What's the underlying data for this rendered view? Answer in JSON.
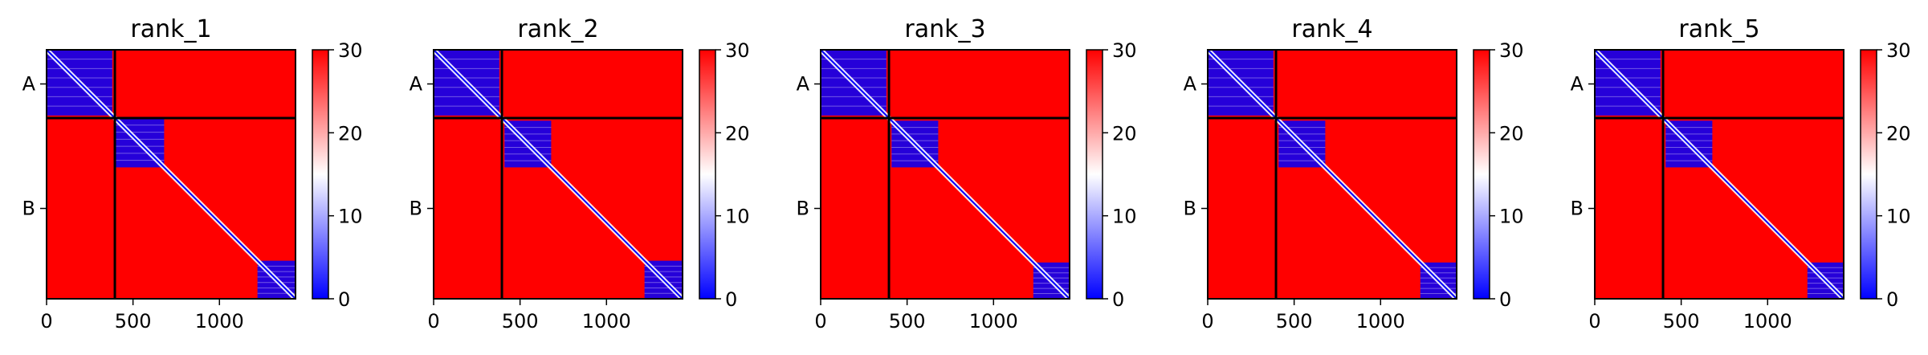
{
  "figure": {
    "colors": {
      "background": "#ffffff",
      "low": "#0000ff",
      "mid": "#ffffff",
      "high": "#ff0000",
      "separator": "#000000"
    }
  },
  "chart_data": [
    {
      "type": "heatmap",
      "title": "rank_1",
      "x_ticks": [
        0,
        500,
        1000
      ],
      "y_tick_labels": [
        "A",
        "B"
      ],
      "chains": [
        {
          "name": "A",
          "start": 0,
          "end": 395
        },
        {
          "name": "B",
          "start": 395,
          "end": 1440
        }
      ],
      "xlim": [
        0,
        1440
      ],
      "colorbar": {
        "ticks": [
          0,
          10,
          20,
          30
        ],
        "range": [
          0,
          30
        ],
        "colormap": "bwr"
      },
      "low_blocks": [
        {
          "x0": 0,
          "x1": 380,
          "y0": 0,
          "y1": 380
        },
        {
          "x0": 395,
          "x1": 680,
          "y0": 395,
          "y1": 680
        },
        {
          "x0": 1220,
          "x1": 1440,
          "y0": 1220,
          "y1": 1440
        }
      ],
      "diagonal_band": true
    },
    {
      "type": "heatmap",
      "title": "rank_2",
      "x_ticks": [
        0,
        500,
        1000
      ],
      "y_tick_labels": [
        "A",
        "B"
      ],
      "chains": [
        {
          "name": "A",
          "start": 0,
          "end": 395
        },
        {
          "name": "B",
          "start": 395,
          "end": 1440
        }
      ],
      "xlim": [
        0,
        1440
      ],
      "colorbar": {
        "ticks": [
          0,
          10,
          20,
          30
        ],
        "range": [
          0,
          30
        ],
        "colormap": "bwr"
      },
      "low_blocks": [
        {
          "x0": 0,
          "x1": 380,
          "y0": 0,
          "y1": 380
        },
        {
          "x0": 410,
          "x1": 680,
          "y0": 410,
          "y1": 680
        },
        {
          "x0": 1220,
          "x1": 1440,
          "y0": 1220,
          "y1": 1440
        }
      ],
      "diagonal_band": true
    },
    {
      "type": "heatmap",
      "title": "rank_3",
      "x_ticks": [
        0,
        500,
        1000
      ],
      "y_tick_labels": [
        "A",
        "B"
      ],
      "chains": [
        {
          "name": "A",
          "start": 0,
          "end": 395
        },
        {
          "name": "B",
          "start": 395,
          "end": 1440
        }
      ],
      "xlim": [
        0,
        1440
      ],
      "colorbar": {
        "ticks": [
          0,
          10,
          20,
          30
        ],
        "range": [
          0,
          30
        ],
        "colormap": "bwr"
      },
      "low_blocks": [
        {
          "x0": 0,
          "x1": 380,
          "y0": 0,
          "y1": 380
        },
        {
          "x0": 410,
          "x1": 680,
          "y0": 410,
          "y1": 680
        },
        {
          "x0": 1230,
          "x1": 1440,
          "y0": 1230,
          "y1": 1440
        }
      ],
      "diagonal_band": true
    },
    {
      "type": "heatmap",
      "title": "rank_4",
      "x_ticks": [
        0,
        500,
        1000
      ],
      "y_tick_labels": [
        "A",
        "B"
      ],
      "chains": [
        {
          "name": "A",
          "start": 0,
          "end": 395
        },
        {
          "name": "B",
          "start": 395,
          "end": 1440
        }
      ],
      "xlim": [
        0,
        1440
      ],
      "colorbar": {
        "ticks": [
          0,
          10,
          20,
          30
        ],
        "range": [
          0,
          30
        ],
        "colormap": "bwr"
      },
      "low_blocks": [
        {
          "x0": 0,
          "x1": 380,
          "y0": 0,
          "y1": 380
        },
        {
          "x0": 410,
          "x1": 680,
          "y0": 410,
          "y1": 680
        },
        {
          "x0": 1230,
          "x1": 1440,
          "y0": 1230,
          "y1": 1440
        }
      ],
      "diagonal_band": true
    },
    {
      "type": "heatmap",
      "title": "rank_5",
      "x_ticks": [
        0,
        500,
        1000
      ],
      "y_tick_labels": [
        "A",
        "B"
      ],
      "chains": [
        {
          "name": "A",
          "start": 0,
          "end": 395
        },
        {
          "name": "B",
          "start": 395,
          "end": 1440
        }
      ],
      "xlim": [
        0,
        1440
      ],
      "colorbar": {
        "ticks": [
          0,
          10,
          20,
          30
        ],
        "range": [
          0,
          30
        ],
        "colormap": "bwr"
      },
      "low_blocks": [
        {
          "x0": 0,
          "x1": 380,
          "y0": 0,
          "y1": 380
        },
        {
          "x0": 410,
          "x1": 680,
          "y0": 410,
          "y1": 680
        },
        {
          "x0": 1230,
          "x1": 1440,
          "y0": 1230,
          "y1": 1440
        }
      ],
      "diagonal_band": true
    }
  ]
}
